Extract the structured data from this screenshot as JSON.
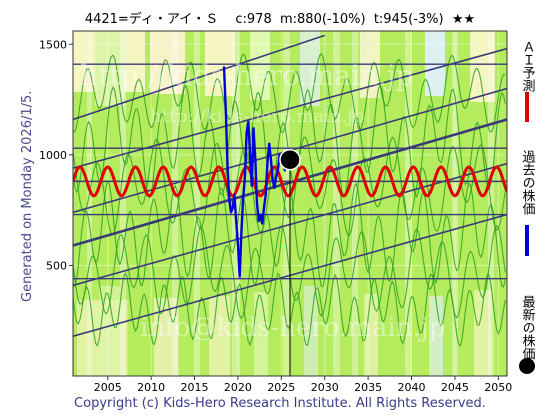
{
  "header": {
    "text": "4421=ディ・アイ・Ｓ　 c:978  m:880(-10%)  t:945(-3%)  ★★"
  },
  "side_label": "Generated on Monday 2026/1/5.",
  "copyright": "Copyright (c) Kids-Hero Research Institute. All Rights Reserved.",
  "legend": [
    {
      "label": "ＡＩ予測",
      "color": "#e00000"
    },
    {
      "label": "過去の株価",
      "color": "#0000dd"
    },
    {
      "label": "最新の株価",
      "color": "#000000"
    }
  ],
  "chart_data": {
    "type": "line",
    "x_ticks": [
      "2005",
      "2010",
      "2015",
      "2020",
      "2025",
      "2030",
      "2035",
      "2040",
      "2045",
      "2050"
    ],
    "y_ticks": [
      "500",
      "1000",
      "1500"
    ],
    "xlim": [
      2001,
      2051
    ],
    "ylim": [
      0,
      1560
    ],
    "horizontal_lines": [
      440,
      730,
      880,
      1030,
      1410
    ],
    "trend_lines": [
      {
        "x0": 2001,
        "y0": 180,
        "x1": 2051,
        "y1": 730
      },
      {
        "x0": 2001,
        "y0": 410,
        "x1": 2051,
        "y1": 960
      },
      {
        "x0": 2001,
        "y0": 590,
        "x1": 2051,
        "y1": 1160
      },
      {
        "x0": 2001,
        "y0": 740,
        "x1": 2051,
        "y1": 1300
      },
      {
        "x0": 2001,
        "y0": 940,
        "x1": 2051,
        "y1": 1480
      },
      {
        "x0": 2001,
        "y0": 1160,
        "x1": 2030,
        "y1": 1540
      }
    ],
    "latest_price": {
      "x": 2026.0,
      "y": 978
    },
    "ai_forecast": {
      "center": 880,
      "amplitude": 65,
      "period_years": 3.2
    },
    "past_prices": {
      "x": [
        2018.4,
        2018.6,
        2018.8,
        2019.0,
        2019.2,
        2019.4,
        2019.6,
        2019.8,
        2020.0,
        2020.2,
        2020.4,
        2020.6,
        2020.8,
        2021.0,
        2021.2,
        2021.4,
        2021.6,
        2021.8,
        2022.0,
        2022.2,
        2022.4,
        2022.6,
        2022.8,
        2023.0,
        2023.2,
        2023.4,
        2023.6,
        2023.8,
        2024.0,
        2024.2,
        2024.4,
        2024.6,
        2024.8,
        2025.0,
        2025.2,
        2025.4,
        2025.6,
        2025.8,
        2026.0
      ],
      "y": [
        1400,
        1200,
        950,
        800,
        740,
        760,
        820,
        700,
        600,
        450,
        650,
        800,
        900,
        1100,
        1150,
        1000,
        860,
        1120,
        980,
        780,
        700,
        730,
        690,
        760,
        820,
        960,
        1050,
        980,
        890,
        850,
        900,
        930,
        1000,
        960,
        980,
        930,
        950,
        970,
        978
      ]
    }
  }
}
